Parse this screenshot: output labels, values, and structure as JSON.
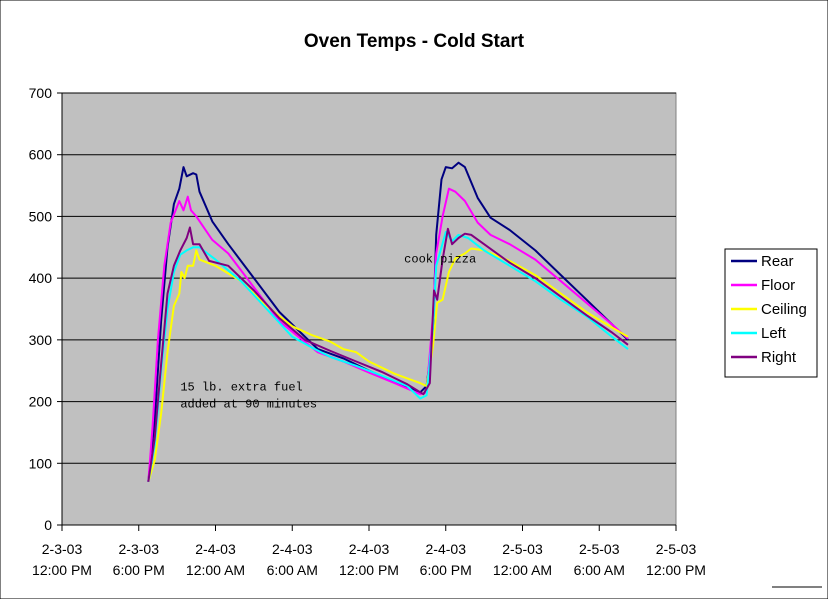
{
  "chart_data": {
    "type": "line",
    "title": "Oven Temps - Cold Start",
    "xlabel": "",
    "ylabel": "",
    "ylim": [
      0,
      700
    ],
    "yticks": [
      0,
      100,
      200,
      300,
      400,
      500,
      600,
      700
    ],
    "xlim": [
      "2-3-03 12:00 PM",
      "2-5-03 12:00 PM"
    ],
    "xticks": [
      {
        "date": "2-3-03",
        "time": "12:00 PM"
      },
      {
        "date": "2-3-03",
        "time": "6:00 PM"
      },
      {
        "date": "2-4-03",
        "time": "12:00 AM"
      },
      {
        "date": "2-4-03",
        "time": "6:00 AM"
      },
      {
        "date": "2-4-03",
        "time": "12:00 PM"
      },
      {
        "date": "2-4-03",
        "time": "6:00 PM"
      },
      {
        "date": "2-5-03",
        "time": "12:00 AM"
      },
      {
        "date": "2-5-03",
        "time": "6:00 AM"
      },
      {
        "date": "2-5-03",
        "time": "12:00 PM"
      }
    ],
    "grid": "horizontal",
    "legend_position": "right",
    "plot_background": "#C0C0C0",
    "annotations": [
      {
        "lines": [
          "cook pizza"
        ],
        "at": [
          "2-4-03 2:45 PM",
          425
        ]
      },
      {
        "lines": [
          "15 lb. extra fuel",
          "added at 90 minutes"
        ],
        "at": [
          "2-3-03 9:15 PM",
          218
        ]
      }
    ],
    "series": [
      {
        "name": "Rear",
        "color": "#000080",
        "points": [
          [
            "2-3-03 6:45 PM",
            70
          ],
          [
            "2-3-03 7:15 PM",
            170
          ],
          [
            "2-3-03 7:45 PM",
            330
          ],
          [
            "2-3-03 8:15 PM",
            450
          ],
          [
            "2-3-03 8:45 PM",
            520
          ],
          [
            "2-3-03 9:10 PM",
            545
          ],
          [
            "2-3-03 9:30 PM",
            580
          ],
          [
            "2-3-03 9:45 PM",
            565
          ],
          [
            "2-3-03 10:15 PM",
            570
          ],
          [
            "2-3-03 10:30 PM",
            568
          ],
          [
            "2-3-03 10:45 PM",
            540
          ],
          [
            "2-3-03 11:45 PM",
            492
          ],
          [
            "2-4-03 1:00 AM",
            455
          ],
          [
            "2-4-03 3:00 AM",
            400
          ],
          [
            "2-4-03 5:00 AM",
            345
          ],
          [
            "2-4-03 6:30 AM",
            315
          ],
          [
            "2-4-03 8:00 AM",
            285
          ],
          [
            "2-4-03 10:00 AM",
            270
          ],
          [
            "2-4-03 12:00 PM",
            250
          ],
          [
            "2-4-03 2:00 PM",
            232
          ],
          [
            "2-4-03 4:00 PM",
            215
          ],
          [
            "2-4-03 4:30 PM",
            225
          ],
          [
            "2-4-03 5:00 PM",
            310
          ],
          [
            "2-4-03 5:15 PM",
            470
          ],
          [
            "2-4-03 5:40 PM",
            560
          ],
          [
            "2-4-03 6:00 PM",
            580
          ],
          [
            "2-4-03 6:30 PM",
            578
          ],
          [
            "2-4-03 7:00 PM",
            587
          ],
          [
            "2-4-03 7:30 PM",
            580
          ],
          [
            "2-4-03 8:30 PM",
            530
          ],
          [
            "2-4-03 9:30 PM",
            498
          ],
          [
            "2-4-03 11:00 PM",
            478
          ],
          [
            "2-5-03 1:00 AM",
            445
          ],
          [
            "2-5-03 3:00 AM",
            405
          ],
          [
            "2-5-03 5:00 AM",
            365
          ],
          [
            "2-5-03 7:00 AM",
            325
          ],
          [
            "2-5-03 8:15 AM",
            300
          ]
        ]
      },
      {
        "name": "Floor",
        "color": "#FF00FF",
        "points": [
          [
            "2-3-03 6:45 PM",
            70
          ],
          [
            "2-3-03 7:05 PM",
            160
          ],
          [
            "2-3-03 7:30 PM",
            300
          ],
          [
            "2-3-03 8:00 PM",
            420
          ],
          [
            "2-3-03 8:30 PM",
            490
          ],
          [
            "2-3-03 9:10 PM",
            525
          ],
          [
            "2-3-03 9:30 PM",
            510
          ],
          [
            "2-3-03 9:50 PM",
            532
          ],
          [
            "2-3-03 10:05 PM",
            510
          ],
          [
            "2-3-03 10:30 PM",
            500
          ],
          [
            "2-3-03 11:45 PM",
            462
          ],
          [
            "2-4-03 1:00 AM",
            440
          ],
          [
            "2-4-03 3:00 AM",
            385
          ],
          [
            "2-4-03 5:00 AM",
            330
          ],
          [
            "2-4-03 6:30 AM",
            305
          ],
          [
            "2-4-03 8:00 AM",
            280
          ],
          [
            "2-4-03 10:00 AM",
            265
          ],
          [
            "2-4-03 12:00 PM",
            247
          ],
          [
            "2-4-03 2:00 PM",
            230
          ],
          [
            "2-4-03 4:00 PM",
            212
          ],
          [
            "2-4-03 4:30 PM",
            215
          ],
          [
            "2-4-03 5:00 PM",
            340
          ],
          [
            "2-4-03 5:15 PM",
            440
          ],
          [
            "2-4-03 5:45 PM",
            500
          ],
          [
            "2-4-03 6:15 PM",
            545
          ],
          [
            "2-4-03 6:45 PM",
            540
          ],
          [
            "2-4-03 7:30 PM",
            525
          ],
          [
            "2-4-03 8:30 PM",
            490
          ],
          [
            "2-4-03 9:30 PM",
            470
          ],
          [
            "2-4-03 11:00 PM",
            455
          ],
          [
            "2-5-03 1:00 AM",
            430
          ],
          [
            "2-5-03 3:00 AM",
            395
          ],
          [
            "2-5-03 5:00 AM",
            360
          ],
          [
            "2-5-03 7:00 AM",
            325
          ],
          [
            "2-5-03 8:15 AM",
            302
          ]
        ]
      },
      {
        "name": "Ceiling",
        "color": "#FFFF00",
        "points": [
          [
            "2-3-03 6:45 PM",
            70
          ],
          [
            "2-3-03 7:15 PM",
            105
          ],
          [
            "2-3-03 7:45 PM",
            180
          ],
          [
            "2-3-03 8:15 PM",
            280
          ],
          [
            "2-3-03 8:45 PM",
            355
          ],
          [
            "2-3-03 9:10 PM",
            375
          ],
          [
            "2-3-03 9:20 PM",
            410
          ],
          [
            "2-3-03 9:35 PM",
            400
          ],
          [
            "2-3-03 9:50 PM",
            420
          ],
          [
            "2-3-03 10:15 PM",
            420
          ],
          [
            "2-3-03 10:30 PM",
            445
          ],
          [
            "2-3-03 10:45 PM",
            430
          ],
          [
            "2-4-03 12:00 AM",
            420
          ],
          [
            "2-4-03 2:00 AM",
            395
          ],
          [
            "2-4-03 4:00 AM",
            355
          ],
          [
            "2-4-03 6:00 AM",
            322
          ],
          [
            "2-4-03 7:30 AM",
            308
          ],
          [
            "2-4-03 9:00 AM",
            297
          ],
          [
            "2-4-03 10:00 AM",
            285
          ],
          [
            "2-4-03 11:00 AM",
            280
          ],
          [
            "2-4-03 12:00 PM",
            265
          ],
          [
            "2-4-03 2:00 PM",
            245
          ],
          [
            "2-4-03 4:00 PM",
            230
          ],
          [
            "2-4-03 4:30 PM",
            225
          ],
          [
            "2-4-03 5:00 PM",
            290
          ],
          [
            "2-4-03 5:20 PM",
            360
          ],
          [
            "2-4-03 5:45 PM",
            365
          ],
          [
            "2-4-03 6:15 PM",
            410
          ],
          [
            "2-4-03 6:45 PM",
            432
          ],
          [
            "2-4-03 7:30 PM",
            440
          ],
          [
            "2-4-03 8:00 PM",
            448
          ],
          [
            "2-4-03 9:00 PM",
            445
          ],
          [
            "2-4-03 11:00 PM",
            428
          ],
          [
            "2-5-03 1:00 AM",
            405
          ],
          [
            "2-5-03 3:00 AM",
            375
          ],
          [
            "2-5-03 5:00 AM",
            345
          ],
          [
            "2-5-03 7:00 AM",
            320
          ],
          [
            "2-5-03 8:15 AM",
            305
          ]
        ]
      },
      {
        "name": "Left",
        "color": "#00FFFF",
        "points": [
          [
            "2-3-03 6:45 PM",
            70
          ],
          [
            "2-3-03 7:15 PM",
            130
          ],
          [
            "2-3-03 7:45 PM",
            250
          ],
          [
            "2-3-03 8:15 PM",
            350
          ],
          [
            "2-3-03 8:45 PM",
            410
          ],
          [
            "2-3-03 9:15 PM",
            438
          ],
          [
            "2-3-03 9:45 PM",
            445
          ],
          [
            "2-3-03 10:15 PM",
            450
          ],
          [
            "2-3-03 10:45 PM",
            450
          ],
          [
            "2-4-03 12:00 AM",
            430
          ],
          [
            "2-4-03 2:00 AM",
            395
          ],
          [
            "2-4-03 4:00 AM",
            350
          ],
          [
            "2-4-03 6:00 AM",
            305
          ],
          [
            "2-4-03 7:30 AM",
            288
          ],
          [
            "2-4-03 9:00 AM",
            272
          ],
          [
            "2-4-03 11:00 AM",
            258
          ],
          [
            "2-4-03 1:00 PM",
            242
          ],
          [
            "2-4-03 3:00 PM",
            225
          ],
          [
            "2-4-03 4:00 PM",
            205
          ],
          [
            "2-4-03 4:30 PM",
            210
          ],
          [
            "2-4-03 5:00 PM",
            320
          ],
          [
            "2-4-03 5:15 PM",
            420
          ],
          [
            "2-4-03 5:40 PM",
            450
          ],
          [
            "2-4-03 6:00 PM",
            475
          ],
          [
            "2-4-03 6:30 PM",
            460
          ],
          [
            "2-4-03 7:00 PM",
            470
          ],
          [
            "2-4-03 7:45 PM",
            465
          ],
          [
            "2-4-03 9:00 PM",
            445
          ],
          [
            "2-4-03 11:00 PM",
            420
          ],
          [
            "2-5-03 1:00 AM",
            395
          ],
          [
            "2-5-03 3:00 AM",
            365
          ],
          [
            "2-5-03 5:00 AM",
            338
          ],
          [
            "2-5-03 7:00 AM",
            305
          ],
          [
            "2-5-03 8:15 AM",
            285
          ]
        ]
      },
      {
        "name": "Right",
        "color": "#800080",
        "points": [
          [
            "2-3-03 6:45 PM",
            70
          ],
          [
            "2-3-03 7:15 PM",
            140
          ],
          [
            "2-3-03 7:45 PM",
            260
          ],
          [
            "2-3-03 8:15 PM",
            375
          ],
          [
            "2-3-03 8:45 PM",
            420
          ],
          [
            "2-3-03 9:15 PM",
            445
          ],
          [
            "2-3-03 9:45 PM",
            465
          ],
          [
            "2-3-03 10:00 PM",
            482
          ],
          [
            "2-3-03 10:15 PM",
            455
          ],
          [
            "2-3-03 10:45 PM",
            455
          ],
          [
            "2-3-03 11:30 PM",
            428
          ],
          [
            "2-4-03 1:00 AM",
            420
          ],
          [
            "2-4-03 3:00 AM",
            380
          ],
          [
            "2-4-03 5:00 AM",
            335
          ],
          [
            "2-4-03 7:00 AM",
            300
          ],
          [
            "2-4-03 9:00 AM",
            282
          ],
          [
            "2-4-03 11:00 AM",
            265
          ],
          [
            "2-4-03 1:00 PM",
            248
          ],
          [
            "2-4-03 3:00 PM",
            228
          ],
          [
            "2-4-03 4:15 PM",
            212
          ],
          [
            "2-4-03 4:45 PM",
            230
          ],
          [
            "2-4-03 5:05 PM",
            380
          ],
          [
            "2-4-03 5:20 PM",
            365
          ],
          [
            "2-4-03 5:45 PM",
            430
          ],
          [
            "2-4-03 6:10 PM",
            480
          ],
          [
            "2-4-03 6:30 PM",
            455
          ],
          [
            "2-4-03 7:00 PM",
            465
          ],
          [
            "2-4-03 7:30 PM",
            472
          ],
          [
            "2-4-03 8:00 PM",
            470
          ],
          [
            "2-4-03 9:00 PM",
            455
          ],
          [
            "2-4-03 11:00 PM",
            425
          ],
          [
            "2-5-03 1:00 AM",
            400
          ],
          [
            "2-5-03 3:00 AM",
            370
          ],
          [
            "2-5-03 5:00 AM",
            340
          ],
          [
            "2-5-03 7:00 AM",
            312
          ],
          [
            "2-5-03 8:15 AM",
            292
          ]
        ]
      }
    ]
  }
}
